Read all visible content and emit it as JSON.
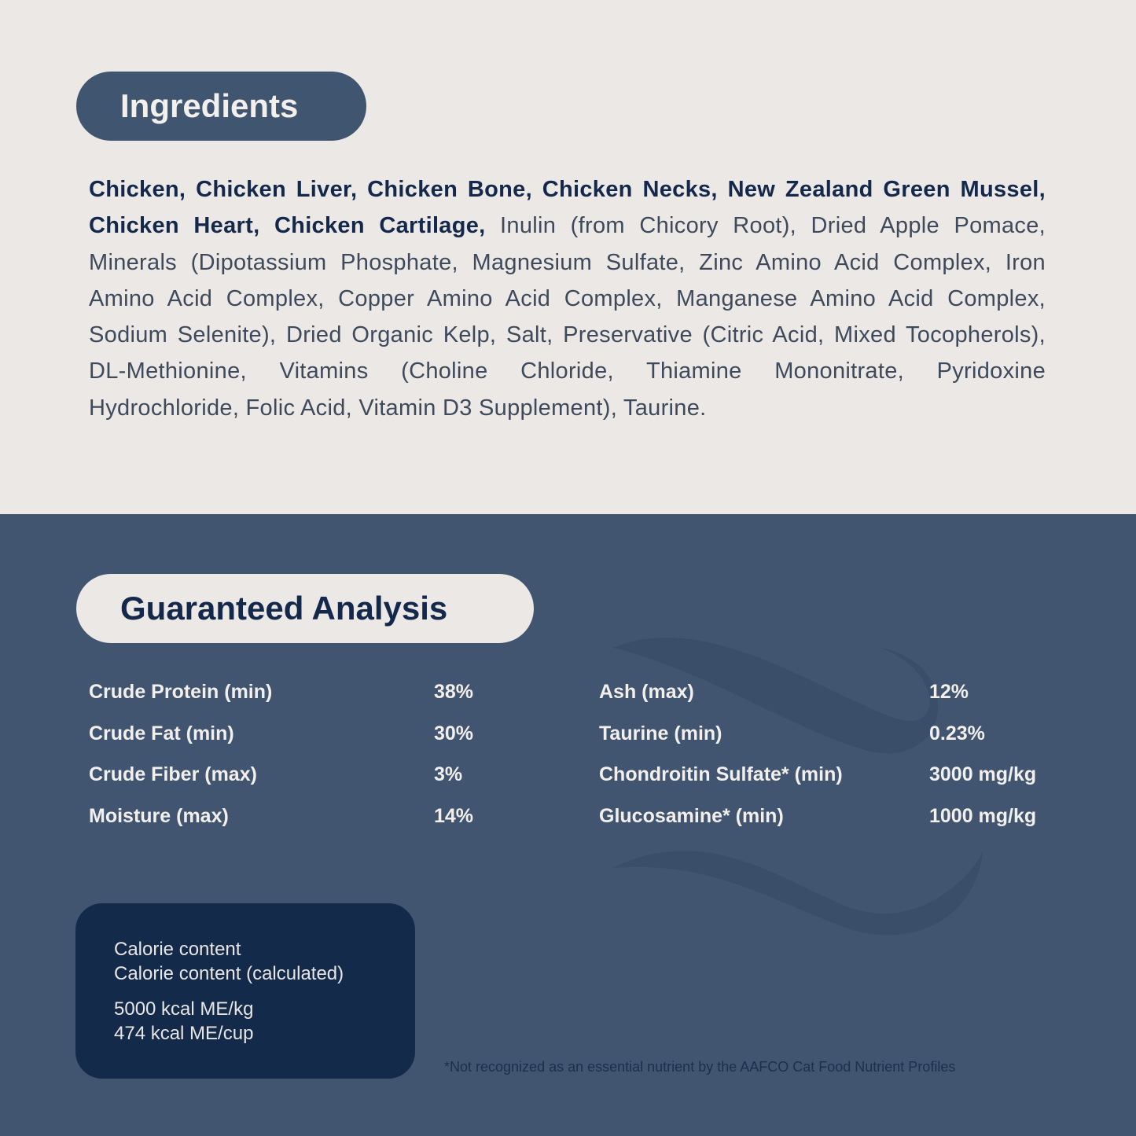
{
  "ingredients": {
    "title": "Ingredients",
    "bold_text": "Chicken, Chicken Liver, Chicken Bone, Chicken Necks, New Zealand Green Mussel, Chicken Heart, Chicken Cartilage,",
    "regular_text": " Inulin (from Chicory Root), Dried Apple Pomace, Minerals (Dipotassium Phosphate, Magnesium Sulfate, Zinc Amino Acid Complex, Iron Amino Acid Complex, Copper Amino Acid Complex, Manganese Amino Acid Complex, Sodium Selenite), Dried Organic Kelp, Salt, Preservative (Citric Acid, Mixed Tocopherols), DL-Methionine, Vitamins (Choline Chloride, Thiamine Mononitrate, Pyridoxine Hydrochloride, Folic Acid, Vitamin D3 Supplement), Taurine."
  },
  "analysis": {
    "title": "Guaranteed Analysis",
    "left": [
      {
        "label": "Crude Protein (min)",
        "value": "38%"
      },
      {
        "label": "Crude Fat (min)",
        "value": "30%"
      },
      {
        "label": "Crude Fiber (max)",
        "value": "3%"
      },
      {
        "label": "Moisture (max)",
        "value": "14%"
      }
    ],
    "right": [
      {
        "label": "Ash (max)",
        "value": "12%"
      },
      {
        "label": "Taurine (min)",
        "value": "0.23%"
      },
      {
        "label": "Chondroitin Sulfate* (min)",
        "value": "3000 mg/kg"
      },
      {
        "label": "Glucosamine* (min)",
        "value": "1000 mg/kg"
      }
    ]
  },
  "calories": {
    "line1": "Calorie content",
    "line2": "Calorie content (calculated)",
    "line3": "5000 kcal ME/kg",
    "line4": "474 kcal ME/cup"
  },
  "footnote": "*Not recognized as an essential nutrient by the AAFCO Cat Food Nutrient Profiles",
  "colors": {
    "light_bg": "#ebe8e5",
    "blue_bg": "#415570",
    "navy": "#14284b",
    "calorie_box": "#132a4a"
  }
}
